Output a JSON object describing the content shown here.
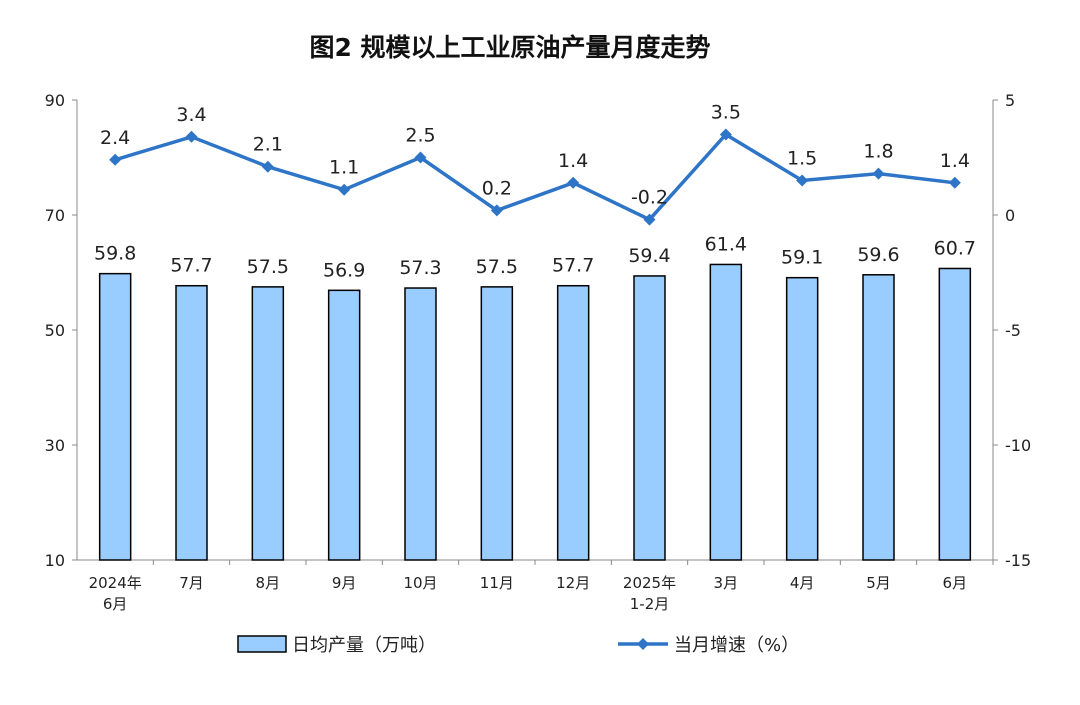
{
  "chart_data": {
    "type": "bar+line",
    "title": "图2  规模以上工业原油产量月度走势",
    "categories": [
      "2024年\n6月",
      "7月",
      "8月",
      "9月",
      "10月",
      "11月",
      "12月",
      "2025年\n1-2月",
      "3月",
      "4月",
      "5月",
      "6月"
    ],
    "series": [
      {
        "name": "日均产量（万吨）",
        "type": "bar",
        "axis": "left",
        "values": [
          59.8,
          57.7,
          57.5,
          56.9,
          57.3,
          57.5,
          57.7,
          59.4,
          61.4,
          59.1,
          59.6,
          60.7
        ],
        "color": "#99CCFF"
      },
      {
        "name": "当月增速（%）",
        "type": "line",
        "axis": "right",
        "values": [
          2.4,
          3.4,
          2.1,
          1.1,
          2.5,
          0.2,
          1.4,
          -0.2,
          3.5,
          1.5,
          1.8,
          1.4
        ],
        "color": "#2E75C7"
      }
    ],
    "left_axis": {
      "ylim": [
        10,
        90
      ],
      "ticks": [
        10,
        30,
        50,
        70,
        90
      ]
    },
    "right_axis": {
      "ylim": [
        -15,
        5
      ],
      "ticks": [
        -15,
        -10,
        -5,
        0,
        5
      ]
    },
    "grid": false,
    "legend": "bottom"
  }
}
